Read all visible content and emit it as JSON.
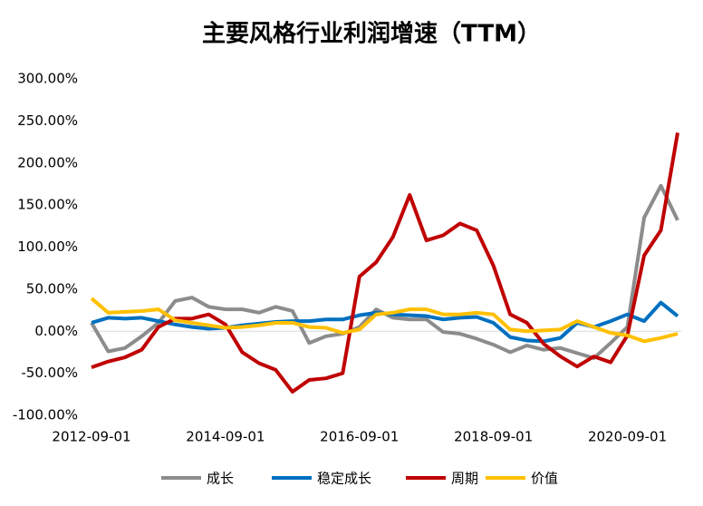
{
  "chart_data": {
    "type": "line",
    "title": "主要风格行业利润增速（TTM）",
    "categories": [
      "2012-09-01",
      null,
      null,
      null,
      null,
      null,
      null,
      null,
      "2014-09-01",
      null,
      null,
      null,
      null,
      null,
      null,
      null,
      "2016-09-01",
      null,
      null,
      null,
      null,
      null,
      null,
      null,
      "2018-09-01",
      null,
      null,
      null,
      null,
      null,
      null,
      null,
      "2020-09-01",
      null,
      null,
      null
    ],
    "series": [
      {
        "name": "成长",
        "color": "#8c8c8c",
        "values": [
          10,
          -24,
          -20,
          -6,
          10,
          36,
          40,
          29,
          26,
          26,
          22,
          29,
          24,
          -14,
          -6,
          -3,
          5,
          26,
          16,
          14,
          14,
          -1,
          -3,
          -9,
          -16,
          -25,
          -17,
          -22,
          -20,
          -26,
          -32,
          -14,
          5,
          135,
          173,
          132
        ]
      },
      {
        "name": "稳定成长",
        "color": "#0070c0",
        "values": [
          10,
          16,
          15,
          16,
          12,
          8,
          5,
          3,
          4,
          7,
          9,
          11,
          12,
          12,
          14,
          14,
          19,
          22,
          20,
          19,
          18,
          14,
          16,
          17,
          10,
          -7,
          -11,
          -12,
          -8,
          10,
          5,
          12,
          20,
          12,
          34,
          18
        ]
      },
      {
        "name": "周期",
        "color": "#c00000",
        "values": [
          -43,
          -36,
          -31,
          -22,
          5,
          15,
          15,
          20,
          8,
          -25,
          -38,
          -46,
          -72,
          -58,
          -56,
          -50,
          65,
          82,
          112,
          162,
          108,
          114,
          128,
          120,
          78,
          20,
          10,
          -15,
          -30,
          -42,
          -30,
          -37,
          -5,
          90,
          120,
          236
        ]
      },
      {
        "name": "价值",
        "color": "#ffc000",
        "values": [
          39,
          22,
          23,
          24,
          26,
          13,
          10,
          7,
          4,
          5,
          7,
          10,
          10,
          5,
          4,
          -2,
          2,
          20,
          22,
          26,
          26,
          20,
          20,
          22,
          20,
          2,
          0,
          1,
          2,
          12,
          5,
          -2,
          -5,
          -12,
          -8,
          -3
        ]
      }
    ],
    "ylim": [
      -100,
      300
    ],
    "yticks": [
      {
        "value": -100,
        "label": "-100.00%"
      },
      {
        "value": -50,
        "label": "-50.00%"
      },
      {
        "value": 0,
        "label": "0.00%"
      },
      {
        "value": 50,
        "label": "50.00%"
      },
      {
        "value": 100,
        "label": "100.00%"
      },
      {
        "value": 150,
        "label": "150.00%"
      },
      {
        "value": 200,
        "label": "200.00%"
      },
      {
        "value": 250,
        "label": "250.00%"
      },
      {
        "value": 300,
        "label": "300.00%"
      }
    ],
    "legend": "bottom"
  }
}
